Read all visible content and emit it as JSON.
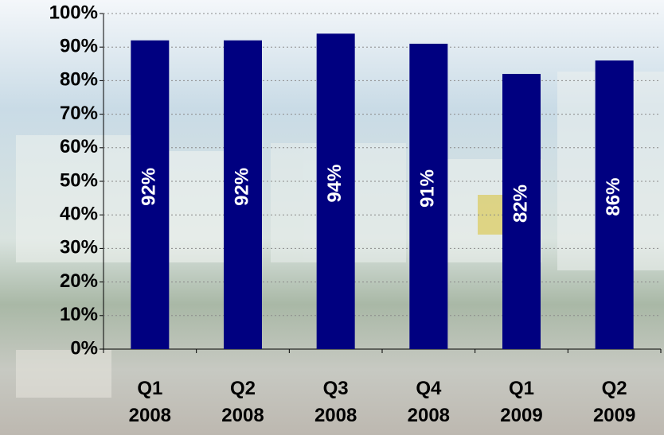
{
  "chart_data": {
    "type": "bar",
    "categories": [
      "Q1 2008",
      "Q2 2008",
      "Q3 2008",
      "Q4 2008",
      "Q1 2009",
      "Q2 2009"
    ],
    "values": [
      92,
      92,
      94,
      91,
      82,
      86
    ],
    "value_labels": [
      "92%",
      "92%",
      "94%",
      "91%",
      "82%",
      "86%"
    ],
    "color": "#000080",
    "ylim": [
      0,
      100
    ],
    "yticks": [
      {
        "value": 0,
        "label": "0%"
      },
      {
        "value": 10,
        "label": "10%"
      },
      {
        "value": 20,
        "label": "20%"
      },
      {
        "value": 30,
        "label": "30%"
      },
      {
        "value": 40,
        "label": "40%"
      },
      {
        "value": 50,
        "label": "50%"
      },
      {
        "value": 60,
        "label": "60%"
      },
      {
        "value": 70,
        "label": "70%"
      },
      {
        "value": 80,
        "label": "80%"
      },
      {
        "value": 90,
        "label": "90%"
      },
      {
        "value": 100,
        "label": "100%"
      }
    ],
    "grid": true
  }
}
